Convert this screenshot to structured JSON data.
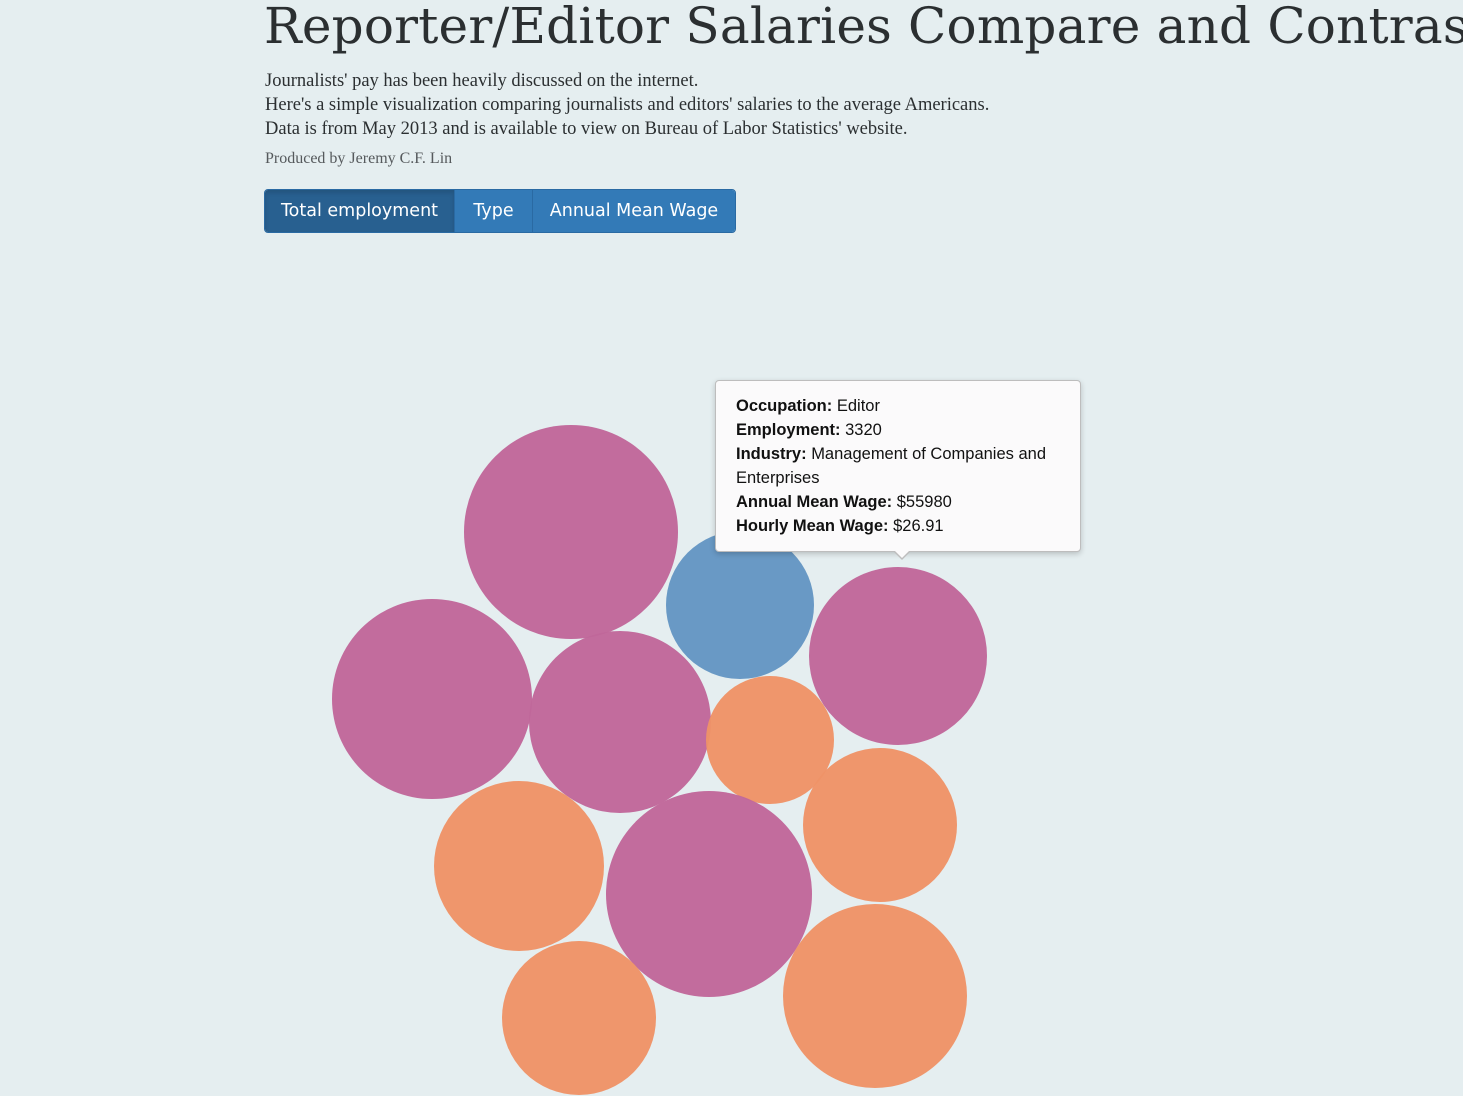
{
  "header": {
    "title": "Reporter/Editor Salaries Compare and Contrast",
    "intro_lines": [
      "Journalists' pay has been heavily discussed on the internet.",
      "Here's a simple visualization comparing journalists and editors' salaries to the average Americans.",
      "Data is from May 2013 and is available to view on Bureau of Labor Statistics' website."
    ],
    "credit": "Produced by Jeremy C.F. Lin"
  },
  "controls": {
    "buttons": [
      "Total employment",
      "Type",
      "Annual Mean Wage"
    ],
    "active": "Total employment"
  },
  "tooltip": {
    "occupation_label": "Occupation:",
    "occupation": "Editor",
    "employment_label": "Employment:",
    "employment": "3320",
    "industry_label": "Industry:",
    "industry": "Management of Companies and Enterprises",
    "annual_label": "Annual Mean Wage:",
    "annual": "$55980",
    "hourly_label": "Hourly Mean Wage:",
    "hourly": "$26.91"
  },
  "colors": {
    "magenta": "#c0679a",
    "orange": "#ee9367",
    "blue": "#6496c3",
    "button": "#337ab7",
    "button_active": "#286090",
    "background": "#e5eef0"
  },
  "chart_data": {
    "type": "bubble",
    "title": "",
    "encoding": "bubble area proportional to total employment; color by group",
    "bubbles": [
      {
        "group": "magenta",
        "r": 107
      },
      {
        "group": "blue",
        "r": 74
      },
      {
        "group": "magenta",
        "r": 100
      },
      {
        "group": "magenta",
        "r": 91
      },
      {
        "group": "magenta",
        "r": 89
      },
      {
        "group": "orange",
        "r": 64
      },
      {
        "group": "orange",
        "r": 85
      },
      {
        "group": "magenta",
        "r": 103
      },
      {
        "group": "orange",
        "r": 77
      },
      {
        "group": "orange",
        "r": 77
      },
      {
        "group": "orange",
        "r": 92
      }
    ],
    "highlighted": {
      "group": "magenta",
      "employment": 3320
    }
  }
}
